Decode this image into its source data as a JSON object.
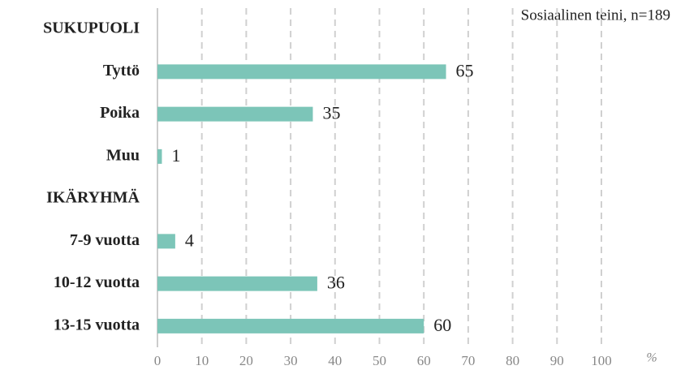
{
  "chart_data": {
    "type": "bar",
    "orientation": "horizontal",
    "annotation": "Sosiaalinen teini, n=189",
    "x_label": "%",
    "categories": [
      "SUKUPUOLI",
      "Tyttö",
      "Poika",
      "Muu",
      "IKÄRYHMÄ",
      "7-9 vuotta",
      "10-12 vuotta",
      "13-15 vuotta"
    ],
    "values": [
      null,
      65,
      35,
      1,
      null,
      4,
      36,
      60
    ],
    "color": "#7cc5b8",
    "xlim": [
      0,
      100
    ],
    "xticks": [
      0,
      10,
      20,
      30,
      40,
      50,
      60,
      70,
      80,
      90,
      100
    ],
    "grid": true
  }
}
